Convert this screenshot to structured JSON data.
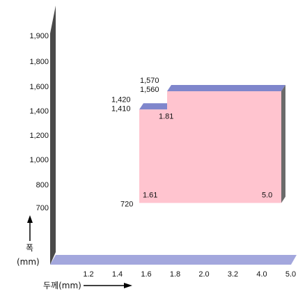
{
  "chart_data": {
    "type": "area",
    "title": "",
    "xlabel": "두께(mm)",
    "ylabel_top": "폭",
    "ylabel_unit": "(mm)",
    "x_ticks": [
      "1.2",
      "1.4",
      "1.6",
      "1.8",
      "2.0",
      "3.2",
      "4.0",
      "5.0"
    ],
    "y_ticks": [
      700,
      800,
      1000,
      1200,
      1400,
      1600,
      1800,
      1900
    ],
    "y_tick_labels": [
      "700",
      "800",
      "1,000",
      "1,200",
      "1,400",
      "1,600",
      "1,800",
      "1,900"
    ],
    "ylim": [
      640,
      2000
    ],
    "grid": false,
    "region": {
      "thickness_min": 1.61,
      "thickness_step": 1.81,
      "thickness_max": 5.0,
      "width_min": 720,
      "width_max_thin": 1410,
      "width_max_thin_edge": 1420,
      "width_max_thick": 1560,
      "width_max_thick_edge": 1570
    },
    "annotations": [
      {
        "key": "w1570",
        "text": "1,570"
      },
      {
        "key": "w1560",
        "text": "1,560"
      },
      {
        "key": "w1420",
        "text": "1,420"
      },
      {
        "key": "w1410",
        "text": "1,410"
      },
      {
        "key": "w720",
        "text": "720"
      },
      {
        "key": "t181",
        "text": "1.81"
      },
      {
        "key": "t161",
        "text": "1.61"
      },
      {
        "key": "t50",
        "text": "5.0"
      }
    ],
    "colors": {
      "fill": "#ffc4cf",
      "top_edge": "#7f86cc",
      "side": "#6b6b6b",
      "axis_wall": "#4a4a4a",
      "floor": "#a3a7dd"
    }
  }
}
